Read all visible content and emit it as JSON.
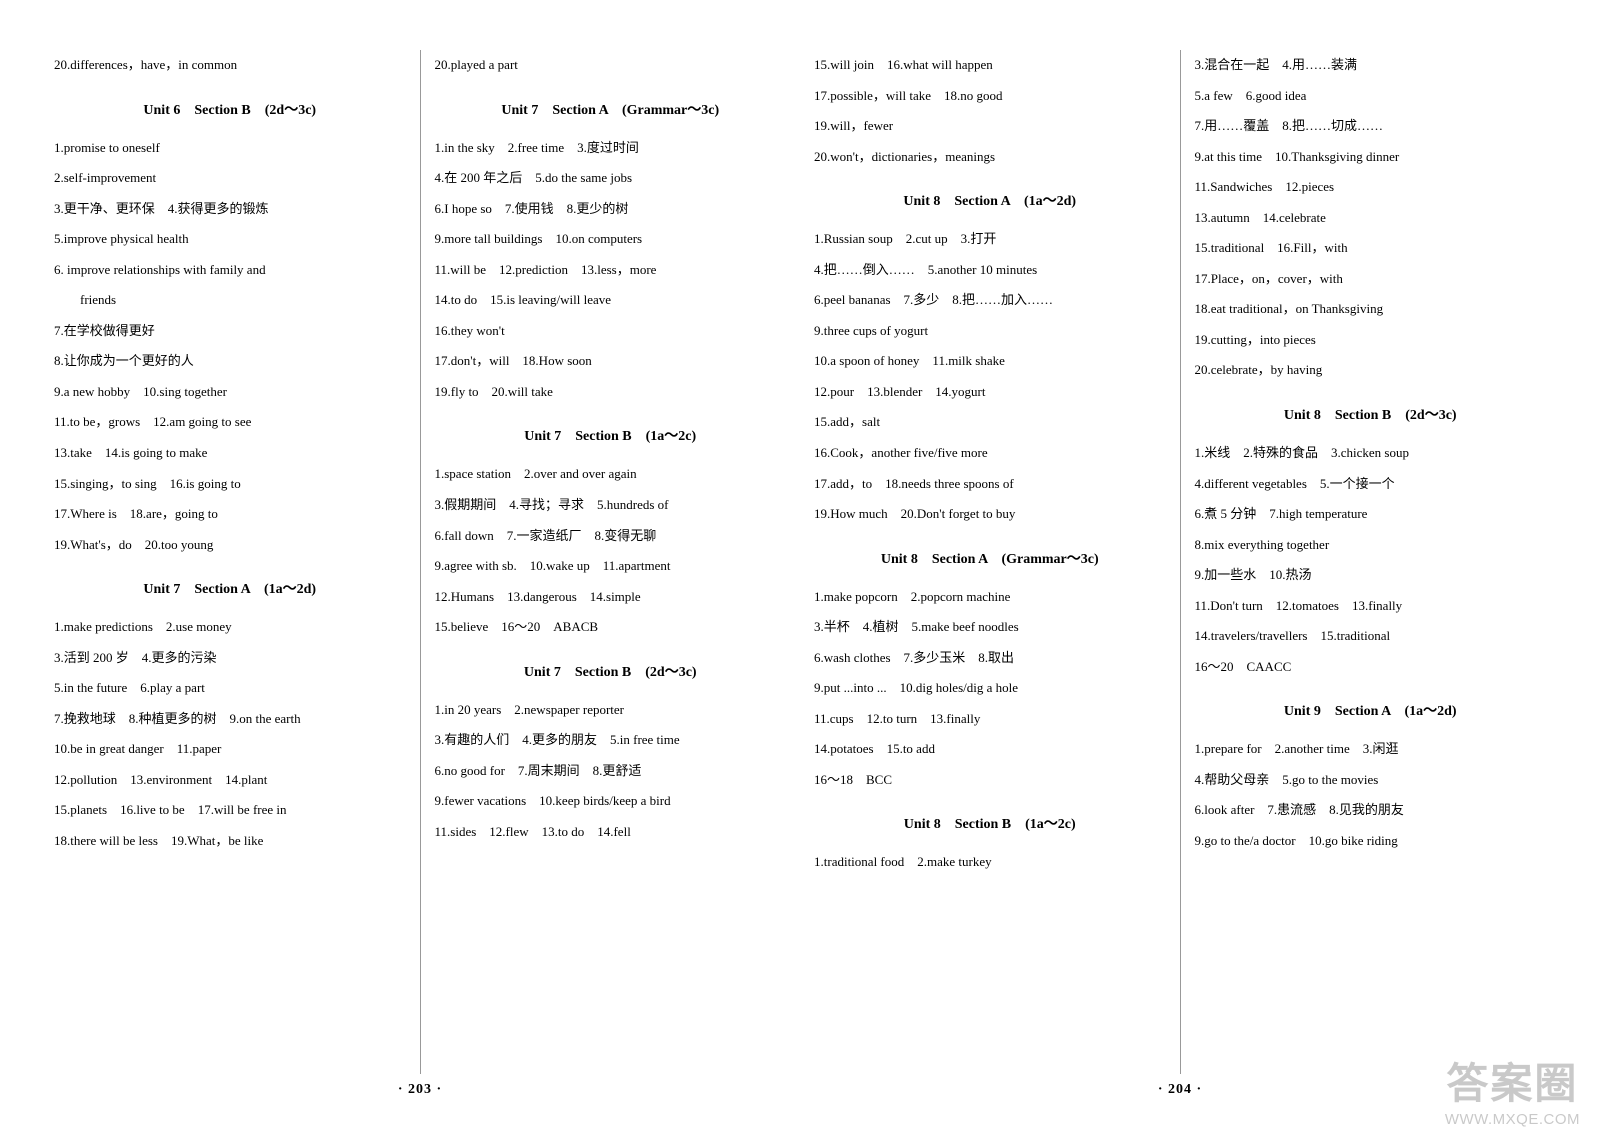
{
  "watermark": {
    "logo": "答案圈",
    "url": "WWW.MXQE.COM"
  },
  "pages": {
    "left": {
      "pageNum": "· 203 ·",
      "col1": [
        {
          "t": "line",
          "v": "20.differences，have，in common"
        },
        {
          "t": "heading",
          "v": "Unit 6　Section B　(2d～3c)"
        },
        {
          "t": "line",
          "v": "1.promise to oneself"
        },
        {
          "t": "line",
          "v": "2.self-improvement"
        },
        {
          "t": "line",
          "v": "3.更干净、更环保　4.获得更多的锻炼"
        },
        {
          "t": "line",
          "v": "5.improve physical health"
        },
        {
          "t": "line",
          "v": "6. improve relationships with family and"
        },
        {
          "t": "line",
          "v": "　　friends"
        },
        {
          "t": "line",
          "v": "7.在学校做得更好"
        },
        {
          "t": "line",
          "v": "8.让你成为一个更好的人"
        },
        {
          "t": "line",
          "v": "9.a new hobby　10.sing together"
        },
        {
          "t": "line",
          "v": "11.to be，grows　12.am going to see"
        },
        {
          "t": "line",
          "v": "13.take　14.is going to make"
        },
        {
          "t": "line",
          "v": "15.singing，to sing　16.is going to"
        },
        {
          "t": "line",
          "v": "17.Where is　18.are，going to"
        },
        {
          "t": "line",
          "v": "19.What's，do　20.too young"
        },
        {
          "t": "heading",
          "v": "Unit 7　Section A　(1a～2d)"
        },
        {
          "t": "line",
          "v": "1.make predictions　2.use money"
        },
        {
          "t": "line",
          "v": "3.活到 200 岁　4.更多的污染"
        },
        {
          "t": "line",
          "v": "5.in the future　6.play a part"
        },
        {
          "t": "line",
          "v": "7.挽救地球　8.种植更多的树　9.on the earth"
        },
        {
          "t": "line",
          "v": "10.be in great danger　11.paper"
        },
        {
          "t": "line",
          "v": "12.pollution　13.environment　14.plant"
        },
        {
          "t": "line",
          "v": "15.planets　16.live to be　17.will be free in"
        },
        {
          "t": "line",
          "v": "18.there will be less　19.What，be like"
        }
      ],
      "col2": [
        {
          "t": "line",
          "v": "20.played a part"
        },
        {
          "t": "heading",
          "v": "Unit 7　Section A　(Grammar～3c)"
        },
        {
          "t": "line",
          "v": "1.in the sky　2.free time　3.度过时间"
        },
        {
          "t": "line",
          "v": "4.在 200 年之后　5.do the same jobs"
        },
        {
          "t": "line",
          "v": "6.I hope so　7.使用钱　8.更少的树"
        },
        {
          "t": "line",
          "v": "9.more tall buildings　10.on computers"
        },
        {
          "t": "line",
          "v": "11.will be　12.prediction　13.less，more"
        },
        {
          "t": "line",
          "v": "14.to do　15.is leaving/will leave"
        },
        {
          "t": "line",
          "v": "16.they won't"
        },
        {
          "t": "line",
          "v": "17.don't，will　18.How soon"
        },
        {
          "t": "line",
          "v": "19.fly to　20.will take"
        },
        {
          "t": "heading",
          "v": "Unit 7　Section B　(1a～2c)"
        },
        {
          "t": "line",
          "v": "1.space station　2.over and over again"
        },
        {
          "t": "line",
          "v": "3.假期期间　4.寻找；寻求　5.hundreds of"
        },
        {
          "t": "line",
          "v": "6.fall down　7.一家造纸厂　8.变得无聊"
        },
        {
          "t": "line",
          "v": "9.agree with sb.　10.wake up　11.apartment"
        },
        {
          "t": "line",
          "v": "12.Humans　13.dangerous　14.simple"
        },
        {
          "t": "line",
          "v": "15.believe　16～20　ABACB"
        },
        {
          "t": "heading",
          "v": "Unit 7　Section B　(2d～3c)"
        },
        {
          "t": "line",
          "v": "1.in 20 years　2.newspaper reporter"
        },
        {
          "t": "line",
          "v": "3.有趣的人们　4.更多的朋友　5.in free time"
        },
        {
          "t": "line",
          "v": "6.no good for　7.周末期间　8.更舒适"
        },
        {
          "t": "line",
          "v": "9.fewer vacations　10.keep birds/keep a bird"
        },
        {
          "t": "line",
          "v": "11.sides　12.flew　13.to do　14.fell"
        }
      ]
    },
    "right": {
      "pageNum": "· 204 ·",
      "col1": [
        {
          "t": "line",
          "v": "15.will join　16.what will happen"
        },
        {
          "t": "line",
          "v": "17.possible，will take　18.no good"
        },
        {
          "t": "line",
          "v": "19.will，fewer"
        },
        {
          "t": "line",
          "v": "20.won't，dictionaries，meanings"
        },
        {
          "t": "heading",
          "v": "Unit 8　Section A　(1a～2d)"
        },
        {
          "t": "line",
          "v": "1.Russian soup　2.cut up　3.打开"
        },
        {
          "t": "line",
          "v": "4.把……倒入……　5.another 10 minutes"
        },
        {
          "t": "line",
          "v": "6.peel bananas　7.多少　8.把……加入……"
        },
        {
          "t": "line",
          "v": "9.three cups of yogurt"
        },
        {
          "t": "line",
          "v": "10.a spoon of honey　11.milk shake"
        },
        {
          "t": "line",
          "v": "12.pour　13.blender　14.yogurt"
        },
        {
          "t": "line",
          "v": "15.add，salt"
        },
        {
          "t": "line",
          "v": "16.Cook，another five/five more"
        },
        {
          "t": "line",
          "v": "17.add，to　18.needs three spoons of"
        },
        {
          "t": "line",
          "v": "19.How much　20.Don't forget to buy"
        },
        {
          "t": "heading",
          "v": "Unit 8　Section A　(Grammar～3c)"
        },
        {
          "t": "line",
          "v": "1.make popcorn　2.popcorn machine"
        },
        {
          "t": "line",
          "v": "3.半杯　4.植树　5.make beef noodles"
        },
        {
          "t": "line",
          "v": "6.wash clothes　7.多少玉米　8.取出"
        },
        {
          "t": "line",
          "v": "9.put ...into ...　10.dig holes/dig a hole"
        },
        {
          "t": "line",
          "v": "11.cups　12.to turn　13.finally"
        },
        {
          "t": "line",
          "v": "14.potatoes　15.to add"
        },
        {
          "t": "line",
          "v": "16～18　BCC"
        },
        {
          "t": "heading",
          "v": "Unit 8　Section B　(1a～2c)"
        },
        {
          "t": "line",
          "v": "1.traditional food　2.make turkey"
        }
      ],
      "col2": [
        {
          "t": "line",
          "v": "3.混合在一起　4.用……装满"
        },
        {
          "t": "line",
          "v": "5.a few　6.good idea"
        },
        {
          "t": "line",
          "v": "7.用……覆盖　8.把……切成……"
        },
        {
          "t": "line",
          "v": "9.at this time　10.Thanksgiving dinner"
        },
        {
          "t": "line",
          "v": "11.Sandwiches　12.pieces"
        },
        {
          "t": "line",
          "v": "13.autumn　14.celebrate"
        },
        {
          "t": "line",
          "v": "15.traditional　16.Fill，with"
        },
        {
          "t": "line",
          "v": "17.Place，on，cover，with"
        },
        {
          "t": "line",
          "v": "18.eat traditional，on Thanksgiving"
        },
        {
          "t": "line",
          "v": "19.cutting，into pieces"
        },
        {
          "t": "line",
          "v": "20.celebrate，by having"
        },
        {
          "t": "heading",
          "v": "Unit 8　Section B　(2d～3c)"
        },
        {
          "t": "line",
          "v": "1.米线　2.特殊的食品　3.chicken soup"
        },
        {
          "t": "line",
          "v": "4.different vegetables　5.一个接一个"
        },
        {
          "t": "line",
          "v": "6.煮 5 分钟　7.high temperature"
        },
        {
          "t": "line",
          "v": "8.mix everything together"
        },
        {
          "t": "line",
          "v": "9.加一些水　10.热汤"
        },
        {
          "t": "line",
          "v": "11.Don't turn　12.tomatoes　13.finally"
        },
        {
          "t": "line",
          "v": "14.travelers/travellers　15.traditional"
        },
        {
          "t": "line",
          "v": "16～20　CAACC"
        },
        {
          "t": "heading",
          "v": "Unit 9　Section A　(1a～2d)"
        },
        {
          "t": "line",
          "v": "1.prepare for　2.another time　3.闲逛"
        },
        {
          "t": "line",
          "v": "4.帮助父母亲　5.go to the movies"
        },
        {
          "t": "line",
          "v": "6.look after　7.患流感　8.见我的朋友"
        },
        {
          "t": "line",
          "v": "9.go to the/a doctor　10.go bike riding"
        }
      ]
    }
  }
}
